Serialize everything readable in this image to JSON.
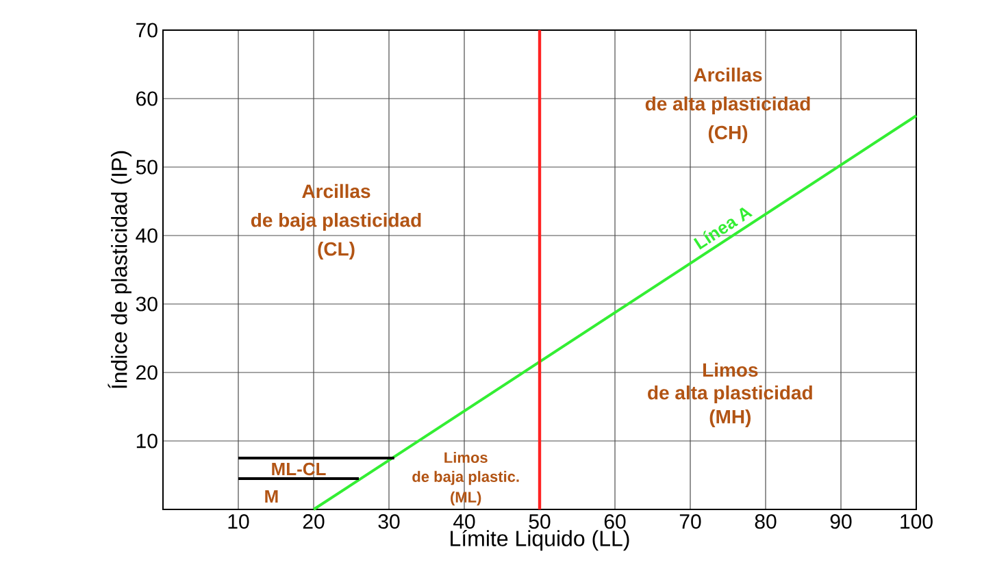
{
  "chart_data": {
    "type": "line",
    "xlabel": "Límite Liquido (LL)",
    "ylabel": "Índice de plasticidad (IP)",
    "xlim": [
      0,
      100
    ],
    "ylim": [
      0,
      70
    ],
    "xticks": [
      {
        "value": 0,
        "label": null
      },
      10,
      20,
      30,
      40,
      50,
      60,
      70,
      80,
      90,
      100
    ],
    "yticks": [
      {
        "value": 0,
        "label": null
      },
      10,
      20,
      30,
      40,
      50,
      60,
      70
    ],
    "grid": true,
    "legend": false,
    "marker": "none",
    "line_style": "solid",
    "series": [
      {
        "name": "Línea A",
        "color": "#33ee33",
        "x": [
          20,
          100
        ],
        "values": [
          0,
          57.5
        ]
      },
      {
        "color": "#000000",
        "x": [
          10,
          30.7
        ],
        "values": [
          7.5,
          7.5
        ]
      },
      {
        "color": "#000000",
        "x": [
          10,
          26
        ],
        "values": [
          4.5,
          4.5
        ]
      }
    ],
    "ref_lines": [
      {
        "axis": "x",
        "value": 50,
        "color": "#ff2222"
      }
    ],
    "annotations": [
      "Arcillas",
      "de alta plasticidad",
      "(CH)",
      "Arcillas",
      "de baja plasticidad",
      "(CL)",
      "Limos",
      "de alta plasticidad",
      "(MH)",
      "Limos",
      "de baja plastic.",
      "(ML)",
      "ML-CL",
      "M"
    ]
  }
}
